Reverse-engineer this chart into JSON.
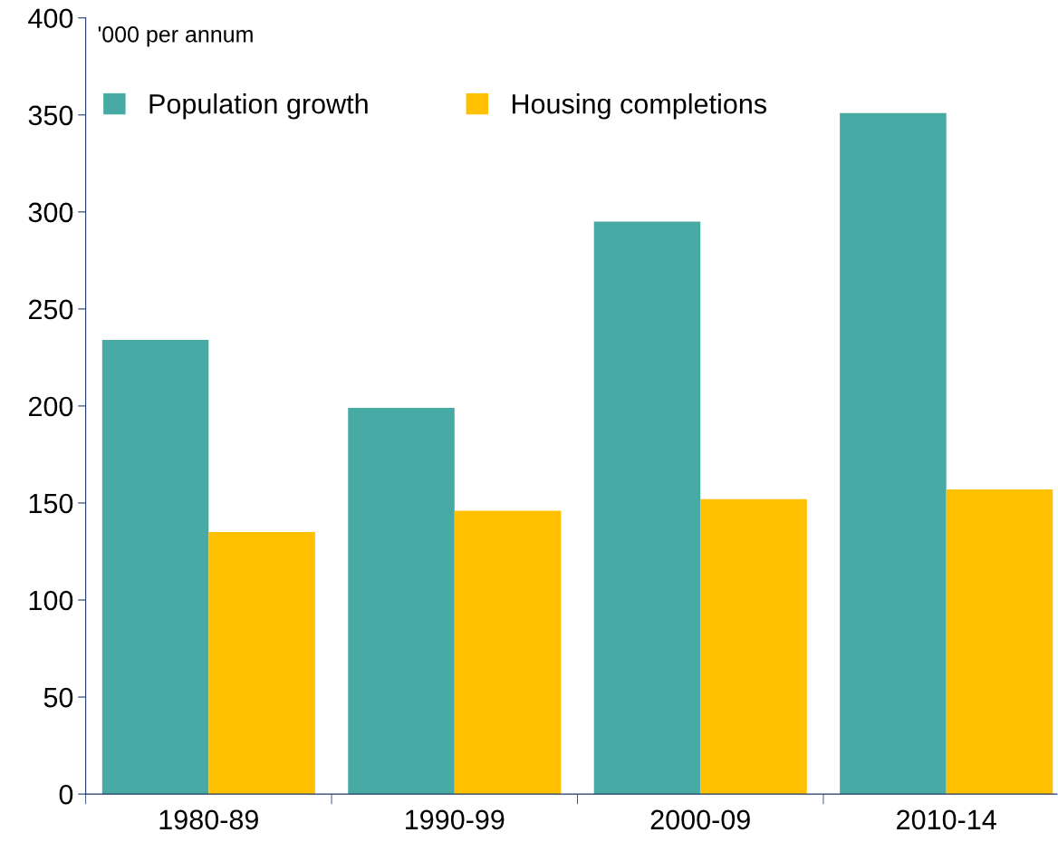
{
  "chart_data": {
    "type": "bar",
    "ylabel": "'000 per annum",
    "categories": [
      "1980-89",
      "1990-99",
      "2000-09",
      "2010-14"
    ],
    "series": [
      {
        "name": "Population growth",
        "color": "#48aaa5",
        "values": [
          234,
          199,
          295,
          351
        ]
      },
      {
        "name": "Housing completions",
        "color": "#ffc000",
        "values": [
          135,
          146,
          152,
          157
        ]
      }
    ],
    "ylim": [
      0,
      400
    ],
    "yticks": [
      0,
      50,
      100,
      150,
      200,
      250,
      300,
      350,
      400
    ],
    "grid": false,
    "legend": "top"
  }
}
